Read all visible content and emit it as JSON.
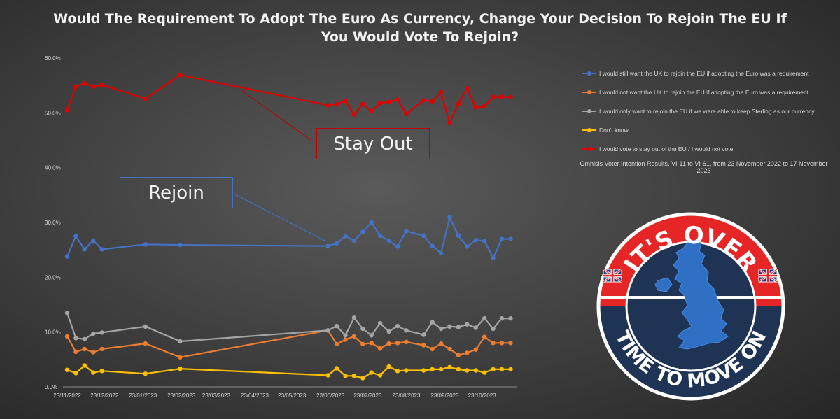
{
  "title_line1": "Would The Requirement To Adopt The Euro As Currency, Change Your Decision To Rejoin The EU If",
  "title_line2": "You Would Vote To Rejoin?",
  "source_note": "Omnisis Voter Intention Results, VI-11 to VI-61, from 23 November 2022 to 17 November 2023",
  "callouts": {
    "stay_out": "Stay Out",
    "rejoin": "Rejoin"
  },
  "badge": {
    "top_text": "IT'S OVER",
    "bottom_text": "TIME TO MOVE ON",
    "colors": {
      "ring": "#e62626",
      "ring_bottom": "#1f3354",
      "map": "#2f6fc4",
      "border": "#ffffff"
    }
  },
  "chart_data": {
    "type": "line",
    "title": "Would The Requirement To Adopt The Euro As Currency, Change Your Decision To Rejoin The EU If You Would Vote To Rejoin?",
    "xlabel": "",
    "ylabel": "",
    "x_axis": {
      "type": "date",
      "range": [
        "2022-11-23",
        "2023-11-17"
      ],
      "tick_labels": [
        "23/11/2022",
        "23/12/2022",
        "23/01/2023",
        "23/02/2023",
        "23/03/2023",
        "23/04/2023",
        "23/05/2023",
        "23/06/2023",
        "23/07/2023",
        "23/08/2023",
        "23/09/2023",
        "23/10/2023"
      ],
      "tick_dates": [
        "2022-11-23",
        "2022-12-23",
        "2023-01-23",
        "2023-02-23",
        "2023-03-23",
        "2023-04-23",
        "2023-05-23",
        "2023-06-23",
        "2023-07-23",
        "2023-08-23",
        "2023-09-23",
        "2023-10-23"
      ]
    },
    "ylim": [
      0,
      60
    ],
    "y_tick_labels": [
      "0.0%",
      "10.0%",
      "20.0%",
      "30.0%",
      "40.0%",
      "50.0%",
      "60.0%"
    ],
    "grid": false,
    "legend_position": "top-right",
    "x": [
      "2022-11-23",
      "2022-11-30",
      "2022-12-07",
      "2022-12-14",
      "2022-12-21",
      "2023-01-25",
      "2023-02-22",
      "2023-06-21",
      "2023-06-28",
      "2023-07-05",
      "2023-07-12",
      "2023-07-19",
      "2023-07-26",
      "2023-08-02",
      "2023-08-09",
      "2023-08-16",
      "2023-08-23",
      "2023-09-06",
      "2023-09-13",
      "2023-09-20",
      "2023-09-27",
      "2023-10-04",
      "2023-10-11",
      "2023-10-18",
      "2023-10-25",
      "2023-11-01",
      "2023-11-08",
      "2023-11-15"
    ],
    "series": [
      {
        "name": "I would still want the UK to rejoin the EU if adopting the Euro was a requirement",
        "color": "#4472c4",
        "values": [
          23.8,
          27.5,
          25.1,
          26.7,
          25.1,
          26.0,
          25.9,
          25.7,
          26.2,
          27.5,
          26.7,
          28.3,
          30.0,
          27.6,
          26.7,
          25.6,
          28.4,
          27.6,
          25.7,
          24.4,
          30.9,
          27.6,
          25.6,
          26.8,
          26.6,
          23.5,
          27.0,
          27.0
        ],
        "values_note": ""
      },
      {
        "name": "I would not want the UK to rejoin the EU if adopting the Euro was a requirement",
        "color": "#ed7d31",
        "values": [
          9.2,
          6.4,
          6.9,
          6.3,
          6.9,
          7.9,
          5.4,
          10.3,
          7.8,
          8.6,
          9.2,
          7.8,
          8.0,
          7.0,
          7.9,
          8.0,
          8.2,
          7.6,
          6.9,
          7.9,
          6.9,
          5.8,
          6.2,
          6.8,
          9.1,
          8.0,
          8.0,
          8.0
        ],
        "values_note": ""
      },
      {
        "name": "I would only want to rejoin the EU if we were able to keep Sterling as our currency",
        "color": "#a5a5a5",
        "values": [
          13.5,
          8.9,
          8.7,
          9.7,
          9.9,
          11.0,
          8.3,
          10.3,
          11.1,
          9.4,
          12.6,
          10.6,
          9.4,
          11.6,
          10.1,
          11.1,
          10.3,
          9.5,
          11.8,
          10.6,
          11.0,
          10.9,
          11.4,
          10.8,
          12.5,
          10.6,
          12.5,
          12.5
        ],
        "values_note": ""
      },
      {
        "name": "Don't know",
        "color": "#ffc000",
        "values": [
          3.1,
          2.5,
          3.9,
          2.6,
          2.9,
          2.4,
          3.3,
          2.1,
          3.4,
          2.0,
          2.0,
          1.6,
          2.6,
          2.1,
          3.7,
          2.9,
          3.0,
          3.0,
          3.2,
          3.2,
          3.6,
          3.2,
          3.0,
          3.0,
          2.6,
          3.2,
          3.2,
          3.2
        ],
        "values_note": ""
      },
      {
        "name": "I would vote to stay out of the EU / I would not vote",
        "color": "#e00000",
        "values": [
          50.5,
          54.8,
          55.4,
          54.8,
          55.1,
          52.6,
          56.9,
          51.4,
          51.6,
          52.2,
          49.7,
          51.6,
          50.3,
          51.8,
          52.0,
          52.4,
          49.8,
          52.3,
          52.1,
          53.8,
          48.2,
          51.6,
          54.5,
          51.0,
          51.2,
          52.9,
          52.9,
          52.9
        ],
        "values_note": ""
      }
    ]
  }
}
